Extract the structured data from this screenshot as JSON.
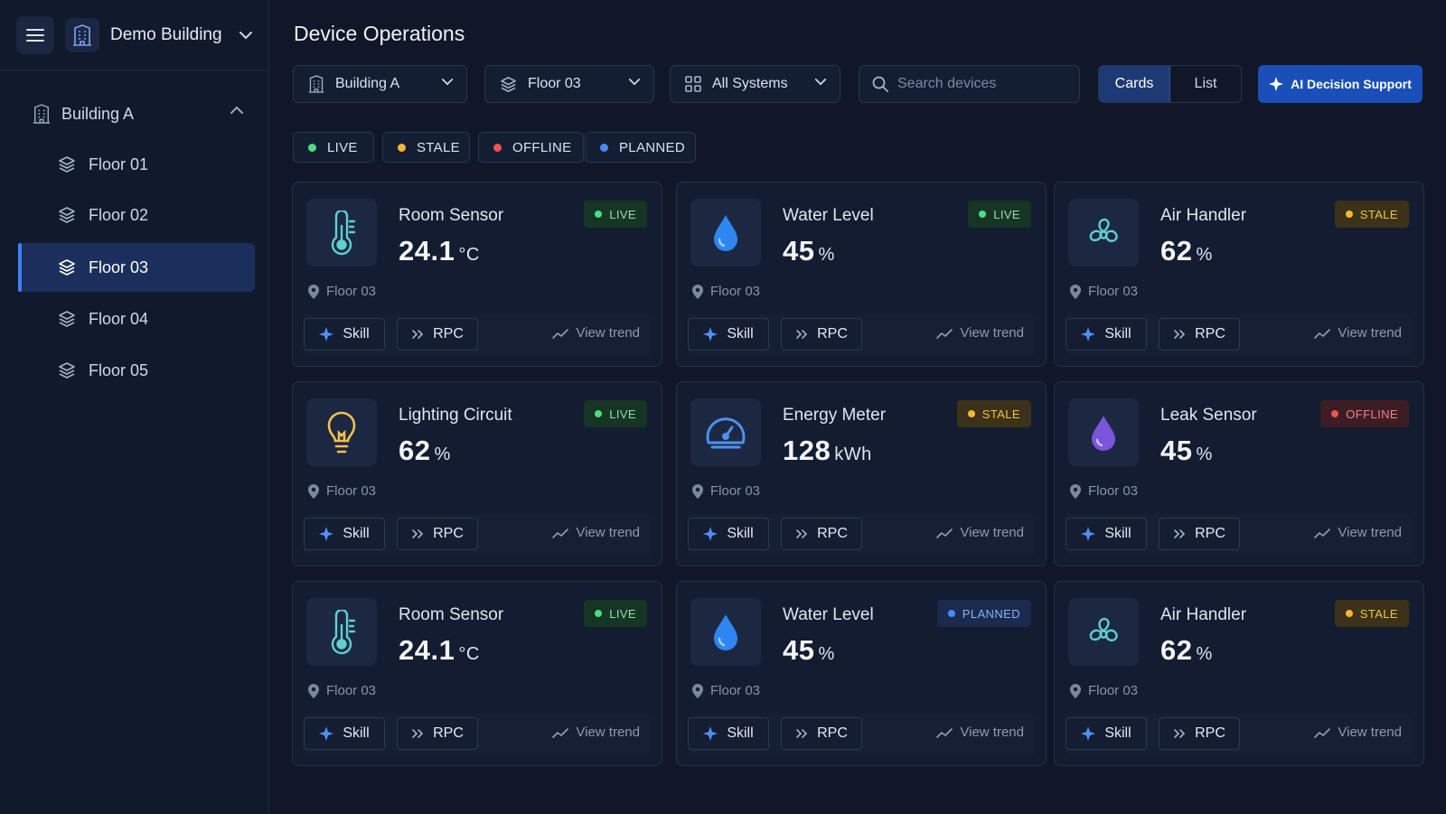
{
  "colors": {
    "background": "#0f1729",
    "sidebar": "#111a2c",
    "accent": "#3b82f6",
    "live": "#4ade80",
    "stale": "#f5b731",
    "offline": "#f05252",
    "planned": "#4f86f7"
  },
  "sidebar": {
    "building_name": "Demo Building",
    "tree_root": "Building A",
    "floors": [
      {
        "label": "Floor 01",
        "active": false
      },
      {
        "label": "Floor 02",
        "active": false
      },
      {
        "label": "Floor 03",
        "active": true
      },
      {
        "label": "Floor 04",
        "active": false
      },
      {
        "label": "Floor 05",
        "active": false
      }
    ]
  },
  "header": {
    "title": "Device Operations",
    "filters": {
      "building": "Building A",
      "floor": "Floor 03",
      "system": "All Systems"
    },
    "search_placeholder": "Search devices",
    "view_options": [
      "Cards",
      "List"
    ],
    "active_view": "Cards",
    "ai_button": "AI Decision Support"
  },
  "status_legend": [
    "LIVE",
    "STALE",
    "OFFLINE",
    "PLANNED"
  ],
  "actions": {
    "skill": "Skill",
    "rpc": "RPC",
    "trend": "View trend"
  },
  "devices": [
    {
      "name": "Room Sensor",
      "value": "24.1",
      "unit": "°C",
      "status": "LIVE",
      "location": "Floor 03",
      "icon": "thermometer-icon"
    },
    {
      "name": "Water Level",
      "value": "45",
      "unit": "%",
      "status": "LIVE",
      "location": "Floor 03",
      "icon": "water-drop-icon"
    },
    {
      "name": "Air Handler",
      "value": "62",
      "unit": "%",
      "status": "STALE",
      "location": "Floor 03",
      "icon": "fan-icon"
    },
    {
      "name": "Lighting Circuit",
      "value": "62",
      "unit": "%",
      "status": "LIVE",
      "location": "Floor 03",
      "icon": "lightbulb-icon"
    },
    {
      "name": "Energy Meter",
      "value": "128",
      "unit": "kWh",
      "status": "STALE",
      "location": "Floor 03",
      "icon": "gauge-icon"
    },
    {
      "name": "Leak Sensor",
      "value": "45",
      "unit": "%",
      "status": "OFFLINE",
      "location": "Floor 03",
      "icon": "leak-drop-icon"
    },
    {
      "name": "Room Sensor",
      "value": "24.1",
      "unit": "°C",
      "status": "LIVE",
      "location": "Floor 03",
      "icon": "thermometer-icon"
    },
    {
      "name": "Water Level",
      "value": "45",
      "unit": "%",
      "status": "PLANNED",
      "location": "Floor 03",
      "icon": "water-drop-icon"
    },
    {
      "name": "Air Handler",
      "value": "62",
      "unit": "%",
      "status": "STALE",
      "location": "Floor 03",
      "icon": "fan-icon"
    }
  ]
}
